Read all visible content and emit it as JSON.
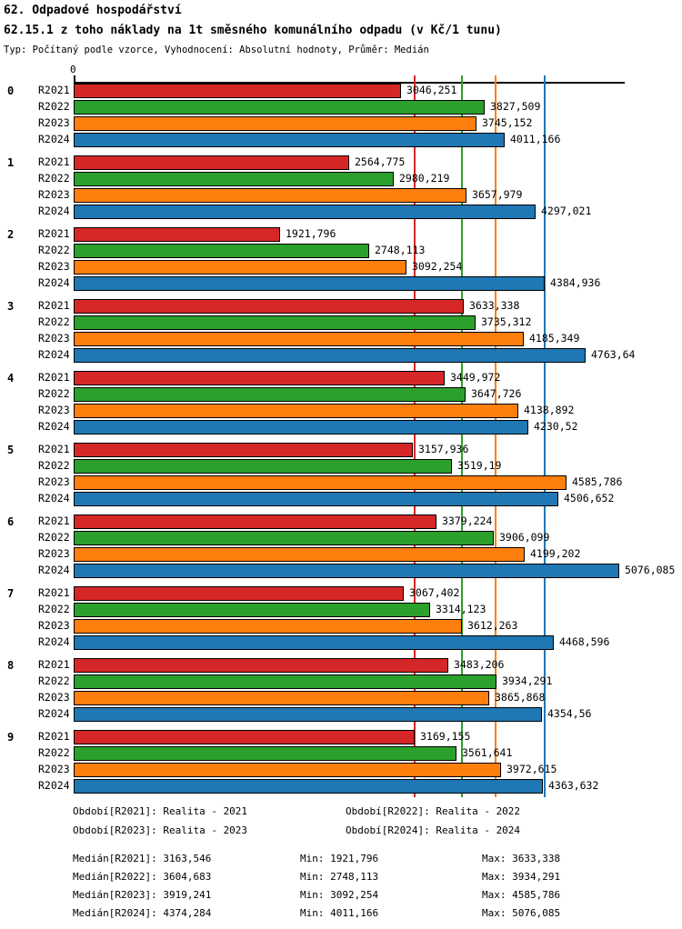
{
  "header": {
    "title": "62. Odpadové hospodářství",
    "subtitle": "62.15.1 z toho náklady na 1t směsného komunálního odpadu (v Kč/1 tunu)",
    "meta": "Typ: Počítaný podle vzorce, Vyhodnocení: Absolutní hodnoty, Průměr: Medián"
  },
  "chart_data": {
    "type": "bar",
    "orientation": "horizontal",
    "title": "62.15.1 z toho náklady na 1t směsného komunálního odpadu (v Kč/1 tunu)",
    "xlabel": "Kč/1 tunu",
    "ylabel": "",
    "x_axis": {
      "zero_label": "0",
      "min": 0,
      "max": 5135,
      "grid": false
    },
    "series": [
      {
        "name": "R2021",
        "color": "#d62728"
      },
      {
        "name": "R2022",
        "color": "#2ca02c"
      },
      {
        "name": "R2023",
        "color": "#ff7f0e"
      },
      {
        "name": "R2024",
        "color": "#1f77b4"
      }
    ],
    "median_lines": [
      {
        "series": "R2021",
        "value": 3163.546,
        "color": "#d62728"
      },
      {
        "series": "R2022",
        "value": 3604.683,
        "color": "#2ca02c"
      },
      {
        "series": "R2023",
        "value": 3919.241,
        "color": "#ff7f0e"
      },
      {
        "series": "R2024",
        "value": 4374.284,
        "color": "#1f77b4"
      }
    ],
    "groups": [
      {
        "label": "0",
        "bars": [
          {
            "series": "R2021",
            "value": 3046.251,
            "display": "3046,251"
          },
          {
            "series": "R2022",
            "value": 3827.509,
            "display": "3827,509"
          },
          {
            "series": "R2023",
            "value": 3745.152,
            "display": "3745,152"
          },
          {
            "series": "R2024",
            "value": 4011.166,
            "display": "4011,166"
          }
        ]
      },
      {
        "label": "1",
        "bars": [
          {
            "series": "R2021",
            "value": 2564.775,
            "display": "2564,775"
          },
          {
            "series": "R2022",
            "value": 2980.219,
            "display": "2980,219"
          },
          {
            "series": "R2023",
            "value": 3657.979,
            "display": "3657,979"
          },
          {
            "series": "R2024",
            "value": 4297.021,
            "display": "4297,021"
          }
        ]
      },
      {
        "label": "2",
        "bars": [
          {
            "series": "R2021",
            "value": 1921.796,
            "display": "1921,796"
          },
          {
            "series": "R2022",
            "value": 2748.113,
            "display": "2748,113"
          },
          {
            "series": "R2023",
            "value": 3092.254,
            "display": "3092,254"
          },
          {
            "series": "R2024",
            "value": 4384.936,
            "display": "4384,936"
          }
        ]
      },
      {
        "label": "3",
        "bars": [
          {
            "series": "R2021",
            "value": 3633.338,
            "display": "3633,338"
          },
          {
            "series": "R2022",
            "value": 3735.312,
            "display": "3735,312"
          },
          {
            "series": "R2023",
            "value": 4185.349,
            "display": "4185,349"
          },
          {
            "series": "R2024",
            "value": 4763.64,
            "display": "4763,64"
          }
        ]
      },
      {
        "label": "4",
        "bars": [
          {
            "series": "R2021",
            "value": 3449.972,
            "display": "3449,972"
          },
          {
            "series": "R2022",
            "value": 3647.726,
            "display": "3647,726"
          },
          {
            "series": "R2023",
            "value": 4138.892,
            "display": "4138,892"
          },
          {
            "series": "R2024",
            "value": 4230.52,
            "display": "4230,52"
          }
        ]
      },
      {
        "label": "5",
        "bars": [
          {
            "series": "R2021",
            "value": 3157.936,
            "display": "3157,936"
          },
          {
            "series": "R2022",
            "value": 3519.19,
            "display": "3519,19"
          },
          {
            "series": "R2023",
            "value": 4585.786,
            "display": "4585,786"
          },
          {
            "series": "R2024",
            "value": 4506.652,
            "display": "4506,652"
          }
        ]
      },
      {
        "label": "6",
        "bars": [
          {
            "series": "R2021",
            "value": 3379.224,
            "display": "3379,224"
          },
          {
            "series": "R2022",
            "value": 3906.099,
            "display": "3906,099"
          },
          {
            "series": "R2023",
            "value": 4199.202,
            "display": "4199,202"
          },
          {
            "series": "R2024",
            "value": 5076.085,
            "display": "5076,085"
          }
        ]
      },
      {
        "label": "7",
        "bars": [
          {
            "series": "R2021",
            "value": 3067.402,
            "display": "3067,402"
          },
          {
            "series": "R2022",
            "value": 3314.123,
            "display": "3314,123"
          },
          {
            "series": "R2023",
            "value": 3612.263,
            "display": "3612,263"
          },
          {
            "series": "R2024",
            "value": 4468.596,
            "display": "4468,596"
          }
        ]
      },
      {
        "label": "8",
        "bars": [
          {
            "series": "R2021",
            "value": 3483.206,
            "display": "3483,206"
          },
          {
            "series": "R2022",
            "value": 3934.291,
            "display": "3934,291"
          },
          {
            "series": "R2023",
            "value": 3865.868,
            "display": "3865,868"
          },
          {
            "series": "R2024",
            "value": 4354.56,
            "display": "4354,56"
          }
        ]
      },
      {
        "label": "9",
        "bars": [
          {
            "series": "R2021",
            "value": 3169.155,
            "display": "3169,155"
          },
          {
            "series": "R2022",
            "value": 3561.641,
            "display": "3561,641"
          },
          {
            "series": "R2023",
            "value": 3972.615,
            "display": "3972,615"
          },
          {
            "series": "R2024",
            "value": 4363.632,
            "display": "4363,632"
          }
        ]
      }
    ]
  },
  "legend": {
    "items": [
      "Období[R2021]: Realita - 2021",
      "Období[R2022]: Realita - 2022",
      "Období[R2023]: Realita - 2023",
      "Období[R2024]: Realita - 2024"
    ]
  },
  "stats": {
    "rows": [
      {
        "median": "Medián[R2021]: 3163,546",
        "min": "Min: 1921,796",
        "max": "Max: 3633,338"
      },
      {
        "median": "Medián[R2022]: 3604,683",
        "min": "Min: 2748,113",
        "max": "Max: 3934,291"
      },
      {
        "median": "Medián[R2023]: 3919,241",
        "min": "Min: 3092,254",
        "max": "Max: 4585,786"
      },
      {
        "median": "Medián[R2024]: 4374,284",
        "min": "Min: 4011,166",
        "max": "Max: 5076,085"
      }
    ]
  }
}
